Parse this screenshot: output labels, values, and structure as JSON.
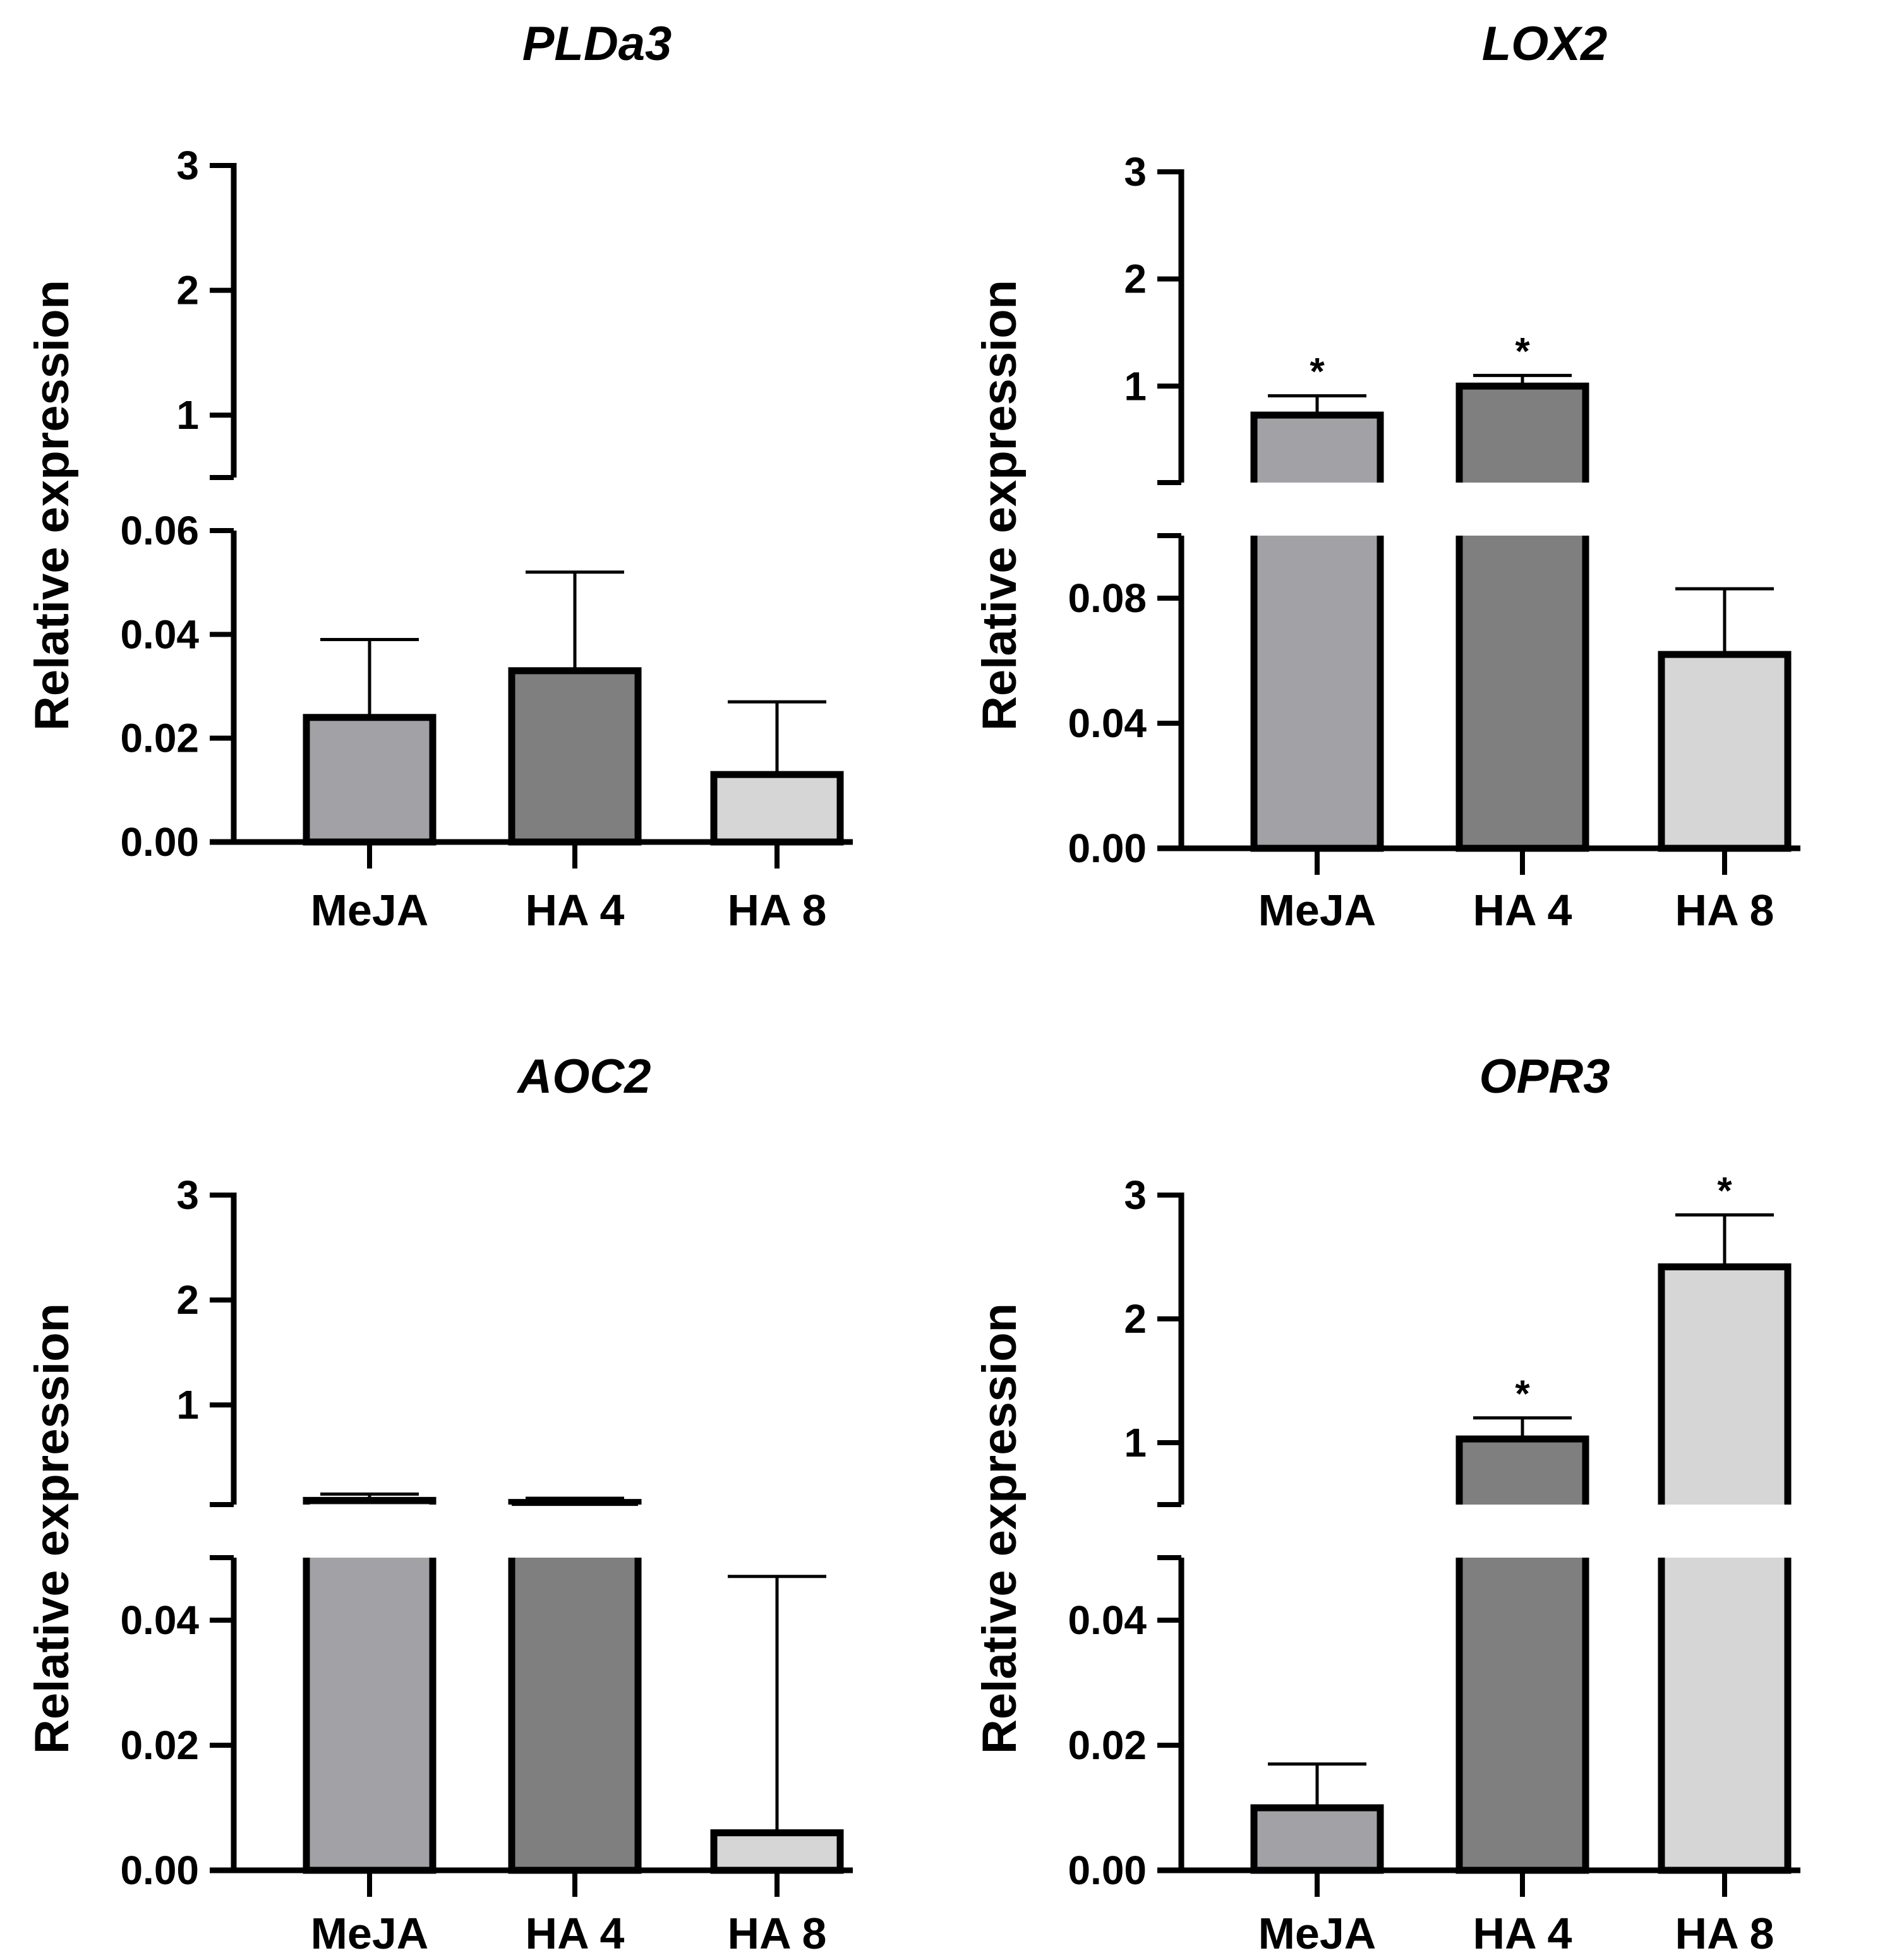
{
  "chart_data": [
    {
      "type": "bar",
      "title": "PLDa3",
      "ylabel": "Relative expression",
      "categories": [
        "MeJA",
        "HA 4",
        "HA 8"
      ],
      "colors": [
        "#a2a2a6",
        "#7f7f7f",
        "#d6d6d6"
      ],
      "axis_break": true,
      "ylim_lower": [
        0,
        0.06
      ],
      "yticks_lower": [
        "0.00",
        "0.02",
        "0.04",
        "0.06"
      ],
      "ylim_upper": [
        0.5,
        3
      ],
      "yticks_upper": [
        "1",
        "2",
        "3"
      ],
      "values": [
        0.024,
        0.033,
        0.013
      ],
      "errors": [
        0.015,
        0.019,
        0.014
      ],
      "significant": [
        false,
        false,
        false
      ],
      "significance_label": "*"
    },
    {
      "type": "bar",
      "title": "LOX2",
      "ylabel": "Relative expression",
      "categories": [
        "MeJA",
        "HA 4",
        "HA 8"
      ],
      "colors": [
        "#a2a2a6",
        "#7f7f7f",
        "#d6d6d6"
      ],
      "axis_break": true,
      "ylim_lower": [
        0,
        0.1
      ],
      "yticks_lower": [
        "0.00",
        "0.04",
        "0.08"
      ],
      "ylim_upper": [
        0.1,
        3
      ],
      "yticks_upper": [
        "1",
        "2",
        "3"
      ],
      "values": [
        0.73,
        1.0,
        0.062
      ],
      "errors": [
        0.18,
        0.1,
        0.021
      ],
      "significant": [
        true,
        true,
        false
      ],
      "significance_label": "*"
    },
    {
      "type": "bar",
      "title": "AOC2",
      "ylabel": "Relative expression",
      "categories": [
        "MeJA",
        "HA 4",
        "HA 8"
      ],
      "colors": [
        "#a2a2a6",
        "#7f7f7f",
        "#d6d6d6"
      ],
      "axis_break": true,
      "ylim_lower": [
        0,
        0.05
      ],
      "yticks_lower": [
        "0.00",
        "0.02",
        "0.04"
      ],
      "ylim_upper": [
        0.05,
        3
      ],
      "yticks_upper": [
        "1",
        "2",
        "3"
      ],
      "values": [
        0.09,
        0.07,
        0.006
      ],
      "errors": [
        0.06,
        0.04,
        0.041
      ],
      "significant": [
        false,
        false,
        false
      ],
      "significance_label": "*"
    },
    {
      "type": "bar",
      "title": "OPR3",
      "ylabel": "Relative expression",
      "categories": [
        "MeJA",
        "HA 4",
        "HA 8"
      ],
      "colors": [
        "#a2a2a6",
        "#7f7f7f",
        "#d6d6d6"
      ],
      "axis_break": true,
      "ylim_lower": [
        0,
        0.05
      ],
      "yticks_lower": [
        "0.00",
        "0.02",
        "0.04"
      ],
      "ylim_upper": [
        0.5,
        3
      ],
      "yticks_upper": [
        "1",
        "2",
        "3"
      ],
      "values": [
        0.01,
        1.03,
        2.42
      ],
      "errors": [
        0.007,
        0.17,
        0.42
      ],
      "significant": [
        false,
        true,
        true
      ],
      "significance_label": "*"
    }
  ]
}
